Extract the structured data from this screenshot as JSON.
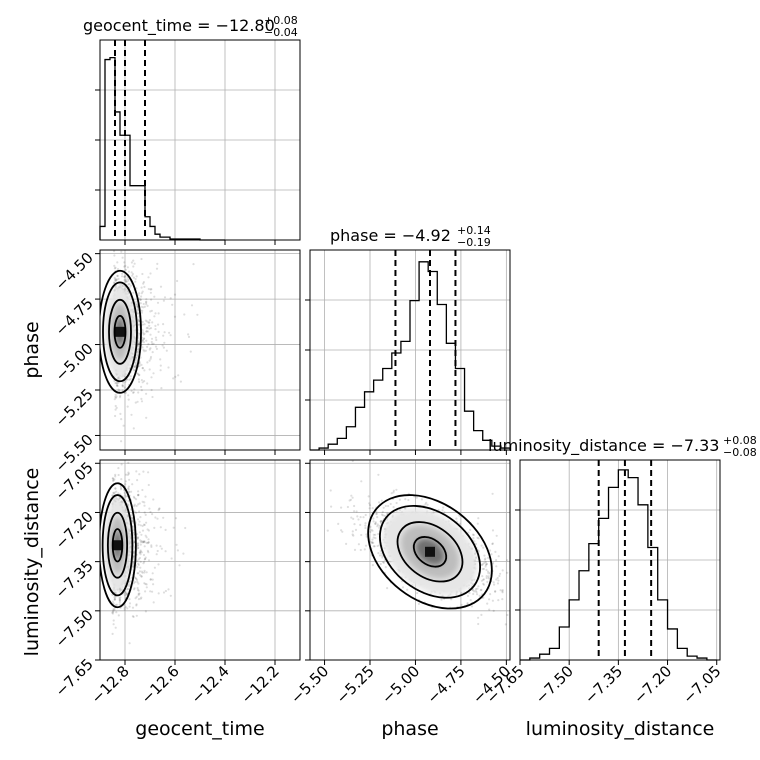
{
  "titles": {
    "geocent_time": {
      "name": "geocent_time",
      "median": "−12.80",
      "plus": "+0.08",
      "minus": "−0.04"
    },
    "phase": {
      "name": "phase",
      "median": "−4.92",
      "plus": "+0.14",
      "minus": "−0.19"
    },
    "luminosity_distance": {
      "name": "luminosity_distance",
      "median": "−7.33",
      "plus": "+0.08",
      "minus": "−0.08"
    }
  },
  "axis_labels": {
    "geocent_time": "geocent_time",
    "phase": "phase",
    "luminosity_distance": "luminosity_distance"
  },
  "chart_data": {
    "type": "corner",
    "parameters": [
      "geocent_time",
      "phase",
      "luminosity_distance"
    ],
    "ranges": {
      "geocent_time": [
        -12.9,
        -12.1
      ],
      "phase": [
        -5.58,
        -4.48
      ],
      "luminosity_distance": [
        -7.65,
        -7.04
      ]
    },
    "ticks": {
      "geocent_time": [
        -12.8,
        -12.6,
        -12.4,
        -12.2
      ],
      "phase": [
        -5.5,
        -5.25,
        -5.0,
        -4.75,
        -4.5
      ],
      "luminosity_distance": [
        -7.65,
        -7.5,
        -7.35,
        -7.2,
        -7.05
      ]
    },
    "tick_labels": {
      "geocent_time": [
        "−12.8",
        "−12.6",
        "−12.4",
        "−12.2"
      ],
      "phase": [
        "−5.50",
        "−5.25",
        "−5.00",
        "−4.75",
        "−4.50"
      ],
      "luminosity_distance": [
        "−7.65",
        "−7.50",
        "−7.35",
        "−7.20",
        "−7.05"
      ]
    },
    "quantiles": {
      "geocent_time": [
        -12.84,
        -12.8,
        -12.72
      ],
      "phase": [
        -5.11,
        -4.92,
        -4.78
      ],
      "luminosity_distance": [
        -7.41,
        -7.33,
        -7.25
      ]
    },
    "histograms": {
      "geocent_time": {
        "edges": [
          -12.9,
          -12.88,
          -12.86,
          -12.84,
          -12.82,
          -12.8,
          -12.78,
          -12.76,
          -12.74,
          -12.72,
          -12.7,
          -12.68,
          -12.66,
          -12.64,
          -12.62,
          -12.6,
          -12.58,
          -12.56,
          -12.54,
          -12.52,
          -12.5,
          -12.48,
          -12.46,
          -12.44,
          -12.42,
          -12.4
        ],
        "counts": [
          0.07,
          0.93,
          0.94,
          0.66,
          0.54,
          0.54,
          0.28,
          0.28,
          0.28,
          0.12,
          0.07,
          0.03,
          0.015,
          0.015,
          0.005,
          0.005,
          0.005,
          0.005,
          0.005,
          0.005,
          0,
          0,
          0,
          0,
          0
        ]
      },
      "phase": {
        "edges": [
          -5.58,
          -5.53,
          -5.48,
          -5.43,
          -5.38,
          -5.33,
          -5.28,
          -5.23,
          -5.18,
          -5.13,
          -5.08,
          -5.03,
          -4.98,
          -4.93,
          -4.88,
          -4.83,
          -4.78,
          -4.73,
          -4.68,
          -4.63,
          -4.58,
          -4.53,
          -4.48
        ],
        "counts": [
          0.0,
          0.01,
          0.03,
          0.06,
          0.12,
          0.22,
          0.3,
          0.36,
          0.42,
          0.5,
          0.56,
          0.77,
          0.97,
          0.92,
          0.75,
          0.55,
          0.42,
          0.2,
          0.1,
          0.05,
          0.02,
          0.01
        ]
      },
      "luminosity_distance": {
        "edges": [
          -7.65,
          -7.62,
          -7.59,
          -7.56,
          -7.53,
          -7.5,
          -7.47,
          -7.44,
          -7.41,
          -7.38,
          -7.35,
          -7.32,
          -7.29,
          -7.26,
          -7.23,
          -7.2,
          -7.17,
          -7.14,
          -7.11,
          -7.08,
          -7.05
        ],
        "counts": [
          0.0,
          0.01,
          0.03,
          0.06,
          0.17,
          0.31,
          0.46,
          0.6,
          0.73,
          0.89,
          0.98,
          0.94,
          0.8,
          0.58,
          0.31,
          0.16,
          0.06,
          0.02,
          0.01,
          0.0
        ]
      }
    },
    "joint_2d": [
      {
        "x": "geocent_time",
        "y": "phase",
        "center": [
          -12.82,
          -4.93
        ],
        "spread": [
          0.04,
          0.16
        ],
        "tilt": 0.0
      },
      {
        "x": "geocent_time",
        "y": "luminosity_distance",
        "center": [
          -12.83,
          -7.3
        ],
        "spread": [
          0.035,
          0.09
        ],
        "tilt": 0.0
      },
      {
        "x": "phase",
        "y": "luminosity_distance",
        "center": [
          -4.92,
          -7.32
        ],
        "spread": [
          0.18,
          0.07
        ],
        "tilt": -0.55
      }
    ]
  }
}
